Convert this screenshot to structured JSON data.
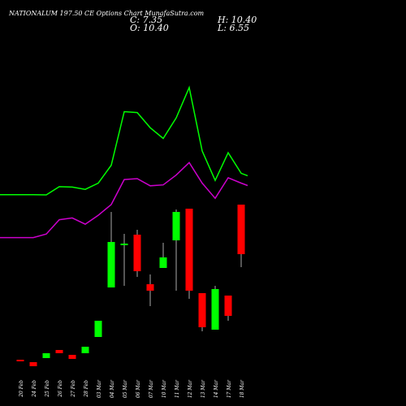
{
  "header": {
    "title": "NATIONALUM 197.50 CE Options Chart MunafaSutra.com",
    "close": "C: 7.35",
    "open": "O: 10.40",
    "high": "H: 10.40",
    "low": "L: 6.55"
  },
  "colors": {
    "background": "#000000",
    "up": "#00ff00",
    "down": "#ff0000",
    "upper_line": "#00ff00",
    "lower_line": "#cc00cc",
    "text": "#ffffff"
  },
  "chart_data": {
    "type": "candlestick",
    "title": "NATIONALUM 197.50 CE Options Chart MunafaSutra.com",
    "categories": [
      "20 Feb",
      "24 Feb",
      "25 Feb",
      "26 Feb",
      "27 Feb",
      "28 Feb",
      "03 Mar",
      "04 Mar",
      "05 Mar",
      "06 Mar",
      "07 Mar",
      "10 Mar",
      "11 Mar",
      "12 Mar",
      "13 Mar",
      "14 Mar",
      "17 Mar",
      "18 Mar"
    ],
    "candles": [
      {
        "date": "20 Feb",
        "open": 0.85,
        "high": 0.85,
        "low": 0.75,
        "close": 0.75
      },
      {
        "date": "24 Feb",
        "open": 0.7,
        "high": 0.7,
        "low": 0.45,
        "close": 0.45
      },
      {
        "date": "25 Feb",
        "open": 0.95,
        "high": 1.25,
        "low": 0.95,
        "close": 1.25
      },
      {
        "date": "26 Feb",
        "open": 1.45,
        "high": 1.45,
        "low": 1.25,
        "close": 1.25
      },
      {
        "date": "27 Feb",
        "open": 1.15,
        "high": 1.15,
        "low": 0.9,
        "close": 0.9
      },
      {
        "date": "28 Feb",
        "open": 1.25,
        "high": 1.65,
        "low": 1.25,
        "close": 1.65
      },
      {
        "date": "03 Mar",
        "open": 2.25,
        "high": 3.25,
        "low": 2.25,
        "close": 3.25
      },
      {
        "date": "04 Mar",
        "open": 5.3,
        "high": 9.95,
        "low": 5.3,
        "close": 8.1
      },
      {
        "date": "05 Mar",
        "open": 8.0,
        "high": 8.6,
        "low": 5.4,
        "close": 8.0
      },
      {
        "date": "06 Mar",
        "open": 8.55,
        "high": 8.85,
        "low": 5.95,
        "close": 6.3
      },
      {
        "date": "07 Mar",
        "open": 5.5,
        "high": 6.1,
        "low": 4.15,
        "close": 5.1
      },
      {
        "date": "10 Mar",
        "open": 6.5,
        "high": 8.05,
        "low": 6.5,
        "close": 7.15
      },
      {
        "date": "11 Mar",
        "open": 8.2,
        "high": 10.1,
        "low": 5.1,
        "close": 9.95
      },
      {
        "date": "12 Mar",
        "open": 10.15,
        "high": 10.15,
        "low": 4.6,
        "close": 5.1
      },
      {
        "date": "13 Mar",
        "open": 4.95,
        "high": 4.95,
        "low": 2.6,
        "close": 2.85
      },
      {
        "date": "14 Mar",
        "open": 2.7,
        "high": 5.4,
        "low": 2.7,
        "close": 5.2
      },
      {
        "date": "17 Mar",
        "open": 4.8,
        "high": 4.8,
        "low": 3.25,
        "close": 3.55
      },
      {
        "date": "18 Mar",
        "open": 10.4,
        "high": 10.4,
        "low": 6.55,
        "close": 7.35
      }
    ],
    "overlay_upper": [
      8.2,
      8.2,
      8.18,
      9.1,
      9.05,
      8.8,
      9.5,
      11.5,
      17.5,
      17.4,
      15.7,
      14.5,
      16.8,
      20.2,
      13.1,
      9.8,
      12.9,
      10.6
    ],
    "overlay_lower": [
      3.4,
      3.4,
      3.8,
      5.4,
      5.6,
      4.9,
      5.9,
      7.1,
      9.9,
      10.0,
      9.2,
      9.3,
      10.4,
      11.8,
      9.5,
      7.8,
      10.1,
      9.5
    ],
    "ylim": [
      0,
      10.5
    ],
    "overlay_ylim": [
      0,
      30
    ],
    "grid": false,
    "legend": "none"
  }
}
